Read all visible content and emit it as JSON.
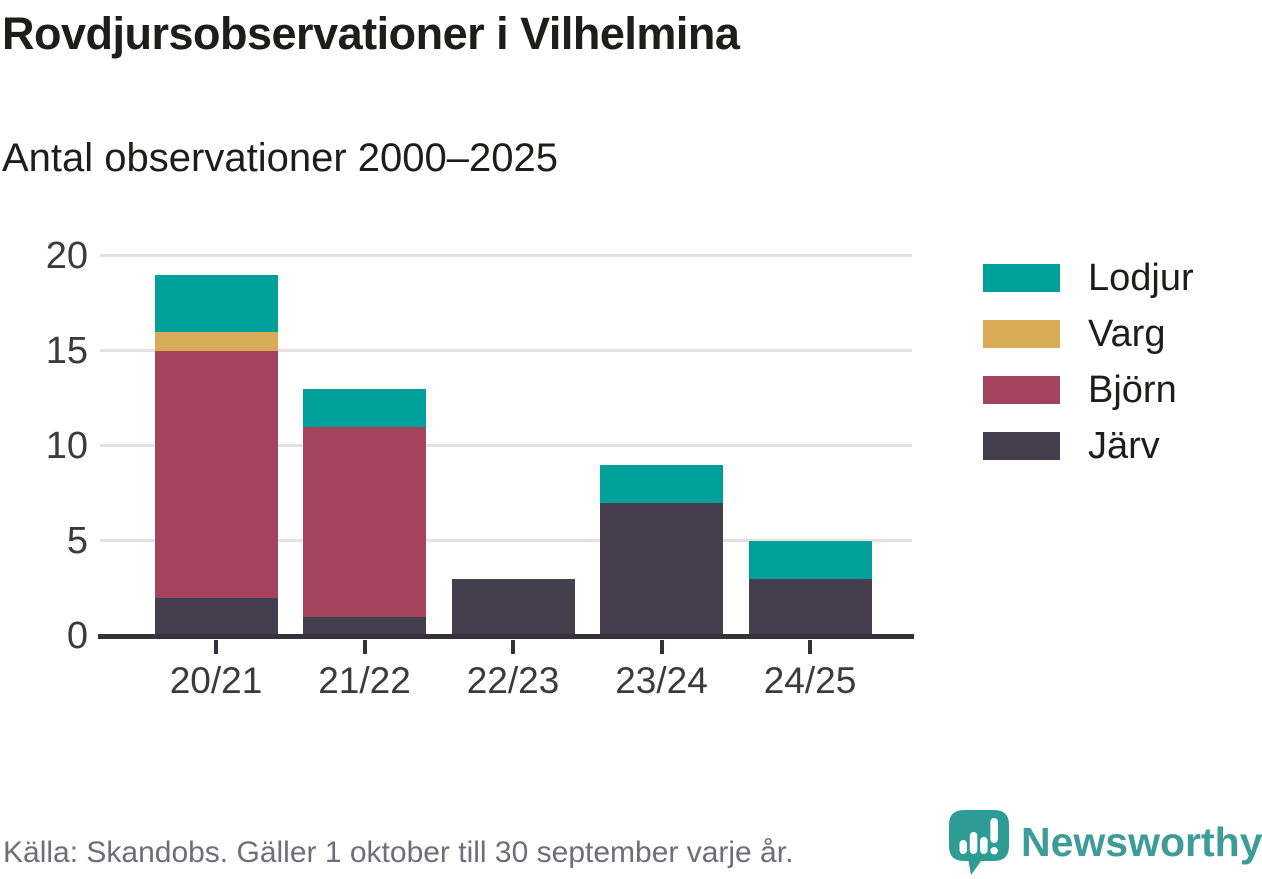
{
  "chart": {
    "title": "Rovdjursobservationer i Vilhelmina",
    "subtitle": "Antal observationer 2000–2025",
    "source": "Källa: Skandobs. Gäller 1 oktober till 30 september varje år.",
    "brand_name": "Newsworthy"
  },
  "colors": {
    "lodjur": "#00A09A",
    "varg": "#D9AB57",
    "bjorn": "#A4435E",
    "jarv": "#433F4C",
    "axis": "#34313B",
    "grid": "#E2E2E2",
    "heading_text": "#1D1D1B",
    "tick_text": "#3B3B3B",
    "source_text": "#6E6E79",
    "brand": "#3E9C98",
    "logo_bubble": "#2E9B95"
  },
  "chart_data": {
    "type": "bar",
    "stacked": true,
    "title": "Rovdjursobservationer i Vilhelmina",
    "subtitle": "Antal observationer 2000–2025",
    "categories": [
      "20/21",
      "21/22",
      "22/23",
      "23/24",
      "24/25"
    ],
    "series": [
      {
        "name": "Järv",
        "color": "#433F4C",
        "values": [
          2,
          1,
          3,
          7,
          3
        ]
      },
      {
        "name": "Björn",
        "color": "#A4435E",
        "values": [
          13,
          10,
          0,
          0,
          0
        ]
      },
      {
        "name": "Varg",
        "color": "#D9AB57",
        "values": [
          1,
          0,
          0,
          0,
          0
        ]
      },
      {
        "name": "Lodjur",
        "color": "#00A09A",
        "values": [
          3,
          2,
          0,
          2,
          2
        ]
      }
    ],
    "legend": [
      "Lodjur",
      "Varg",
      "Björn",
      "Järv"
    ],
    "legend_position": "right",
    "ylim": [
      0,
      20
    ],
    "yticks": [
      0,
      5,
      10,
      15,
      20
    ],
    "grid": "horizontal",
    "xlabel": "",
    "ylabel": ""
  }
}
